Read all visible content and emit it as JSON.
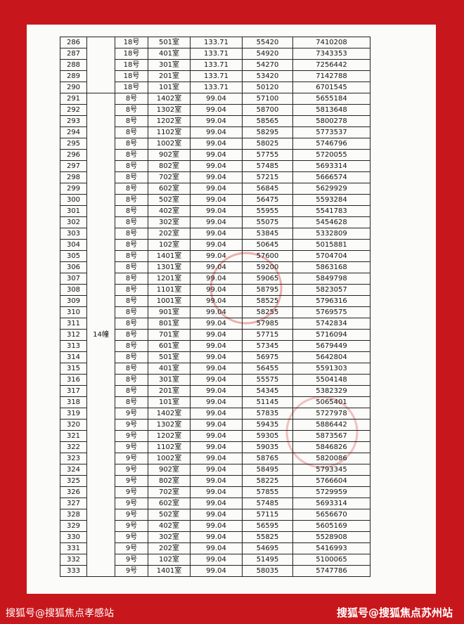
{
  "table": {
    "building": "14幢",
    "rows": [
      [
        "286",
        "18号",
        "501室",
        "133.71",
        "55420",
        "7410208"
      ],
      [
        "287",
        "18号",
        "401室",
        "133.71",
        "54920",
        "7343353"
      ],
      [
        "288",
        "18号",
        "301室",
        "133.71",
        "54270",
        "7256442"
      ],
      [
        "289",
        "18号",
        "201室",
        "133.71",
        "53420",
        "7142788"
      ],
      [
        "290",
        "18号",
        "101室",
        "133.71",
        "50120",
        "6701545"
      ],
      [
        "291",
        "8号",
        "1402室",
        "99.04",
        "57100",
        "5655184"
      ],
      [
        "292",
        "8号",
        "1302室",
        "99.04",
        "58700",
        "5813648"
      ],
      [
        "293",
        "8号",
        "1202室",
        "99.04",
        "58565",
        "5800278"
      ],
      [
        "294",
        "8号",
        "1102室",
        "99.04",
        "58295",
        "5773537"
      ],
      [
        "295",
        "8号",
        "1002室",
        "99.04",
        "58025",
        "5746796"
      ],
      [
        "296",
        "8号",
        "902室",
        "99.04",
        "57755",
        "5720055"
      ],
      [
        "297",
        "8号",
        "802室",
        "99.04",
        "57485",
        "5693314"
      ],
      [
        "298",
        "8号",
        "702室",
        "99.04",
        "57215",
        "5666574"
      ],
      [
        "299",
        "8号",
        "602室",
        "99.04",
        "56845",
        "5629929"
      ],
      [
        "300",
        "8号",
        "502室",
        "99.04",
        "56475",
        "5593284"
      ],
      [
        "301",
        "8号",
        "402室",
        "99.04",
        "55955",
        "5541783"
      ],
      [
        "302",
        "8号",
        "302室",
        "99.04",
        "55075",
        "5454628"
      ],
      [
        "303",
        "8号",
        "202室",
        "99.04",
        "53845",
        "5332809"
      ],
      [
        "304",
        "8号",
        "102室",
        "99.04",
        "50645",
        "5015881"
      ],
      [
        "305",
        "8号",
        "1401室",
        "99.04",
        "57600",
        "5704704"
      ],
      [
        "306",
        "8号",
        "1301室",
        "99.04",
        "59200",
        "5863168"
      ],
      [
        "307",
        "8号",
        "1201室",
        "99.04",
        "59065",
        "5849798"
      ],
      [
        "308",
        "8号",
        "1101室",
        "99.04",
        "58795",
        "5823057"
      ],
      [
        "309",
        "8号",
        "1001室",
        "99.04",
        "58525",
        "5796316"
      ],
      [
        "310",
        "8号",
        "901室",
        "99.04",
        "58255",
        "5769575"
      ],
      [
        "311",
        "8号",
        "801室",
        "99.04",
        "57985",
        "5742834"
      ],
      [
        "312",
        "8号",
        "701室",
        "99.04",
        "57715",
        "5716094"
      ],
      [
        "313",
        "8号",
        "601室",
        "99.04",
        "57345",
        "5679449"
      ],
      [
        "314",
        "8号",
        "501室",
        "99.04",
        "56975",
        "5642804"
      ],
      [
        "315",
        "8号",
        "401室",
        "99.04",
        "56455",
        "5591303"
      ],
      [
        "316",
        "8号",
        "301室",
        "99.04",
        "55575",
        "5504148"
      ],
      [
        "317",
        "8号",
        "201室",
        "99.04",
        "54345",
        "5382329"
      ],
      [
        "318",
        "8号",
        "101室",
        "99.04",
        "51145",
        "5065401"
      ],
      [
        "319",
        "9号",
        "1402室",
        "99.04",
        "57835",
        "5727978"
      ],
      [
        "320",
        "9号",
        "1302室",
        "99.04",
        "59435",
        "5886442"
      ],
      [
        "321",
        "9号",
        "1202室",
        "99.04",
        "59305",
        "5873567"
      ],
      [
        "322",
        "9号",
        "1102室",
        "99.04",
        "59035",
        "5846826"
      ],
      [
        "323",
        "9号",
        "1002室",
        "99.04",
        "58765",
        "5820086"
      ],
      [
        "324",
        "9号",
        "902室",
        "99.04",
        "58495",
        "5793345"
      ],
      [
        "325",
        "9号",
        "802室",
        "99.04",
        "58225",
        "5766604"
      ],
      [
        "326",
        "9号",
        "702室",
        "99.04",
        "57855",
        "5729959"
      ],
      [
        "327",
        "9号",
        "602室",
        "99.04",
        "57485",
        "5693314"
      ],
      [
        "328",
        "9号",
        "502室",
        "99.04",
        "57115",
        "5656670"
      ],
      [
        "329",
        "9号",
        "402室",
        "99.04",
        "56595",
        "5605169"
      ],
      [
        "330",
        "9号",
        "302室",
        "99.04",
        "55825",
        "5528908"
      ],
      [
        "331",
        "9号",
        "202室",
        "99.04",
        "54695",
        "5416993"
      ],
      [
        "332",
        "9号",
        "102室",
        "99.04",
        "51495",
        "5100065"
      ],
      [
        "333",
        "9号",
        "1401室",
        "99.04",
        "58035",
        "5747786"
      ]
    ]
  },
  "footer": {
    "left": "搜狐号@搜狐焦点孝感站",
    "right": "搜狐号@搜狐焦点苏州站"
  }
}
